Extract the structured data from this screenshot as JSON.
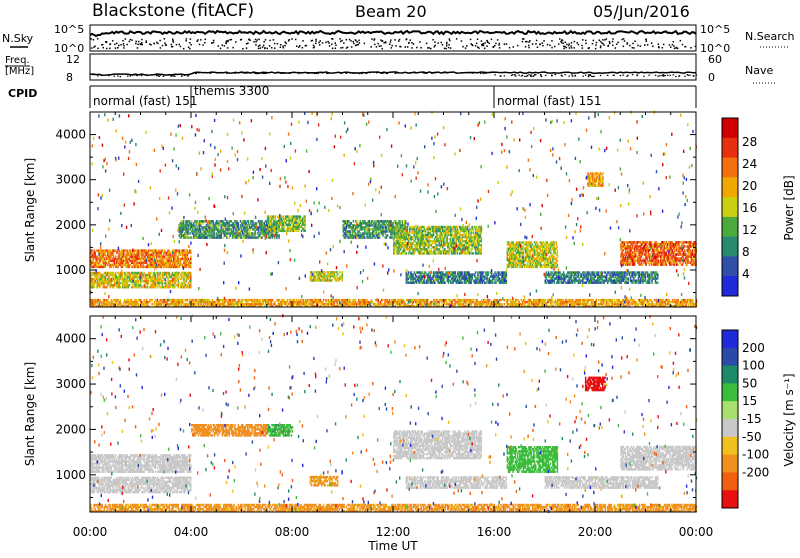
{
  "header": {
    "station": "Blackstone (fitACF)",
    "beam": "Beam 20",
    "date": "05/Jun/2016"
  },
  "top_panels": {
    "nsky_label": "N.Sky",
    "nsearch_label": "N.Search",
    "noise_ticks_left": [
      "10^5",
      "10^0"
    ],
    "noise_ticks_right": [
      "10^5",
      "10^0"
    ],
    "freq_label": "Freq.",
    "freq_unit": "[MHz]",
    "freq_ticks": [
      "12",
      "8"
    ],
    "nave_label": "Nave",
    "nave_ticks": [
      "60",
      "0"
    ],
    "cpid_label": "CPID"
  },
  "cpid_segments": [
    {
      "label": "normal (fast) 151",
      "start_hour": 0.0
    },
    {
      "label": "themis 3300",
      "start_hour": 4.0
    },
    {
      "label": "normal (fast) 151",
      "start_hour": 16.0
    }
  ],
  "axes": {
    "x_ticks": [
      "00:00",
      "04:00",
      "08:00",
      "12:00",
      "16:00",
      "20:00",
      "00:00"
    ],
    "x_label": "Time UT",
    "y_label": "Slant Range [km]",
    "y_ticks": [
      "1000",
      "2000",
      "3000",
      "4000"
    ]
  },
  "power_scale": {
    "label": "Power [dB]",
    "ticks": [
      "4",
      "8",
      "12",
      "16",
      "20",
      "24",
      "28"
    ],
    "colors": [
      "#1f2bd8",
      "#2f4fa8",
      "#2a8a70",
      "#4caa3c",
      "#c8d010",
      "#f0a800",
      "#f07010",
      "#e83010",
      "#d00000"
    ]
  },
  "velocity_scale": {
    "label": "Velocity [m s⁻¹]",
    "ticks": [
      "200",
      "100",
      "50",
      "15",
      "-15",
      "-50",
      "-100",
      "-200"
    ],
    "colors": [
      "#1f2bd8",
      "#2a4aa8",
      "#1e8a6a",
      "#3cbc3c",
      "#a8e070",
      "#c8c8c8",
      "#f0c020",
      "#f09020",
      "#f06010",
      "#e81010"
    ]
  },
  "chart_data": {
    "type": "heatmap",
    "x_range_hours": [
      0,
      24
    ],
    "y_range_km": [
      180,
      4500
    ],
    "panels": [
      {
        "name": "power",
        "regions": [
          {
            "t": [
              0.0,
              4.0
            ],
            "r": [
              1050,
              1450
            ],
            "v": 22
          },
          {
            "t": [
              0.0,
              4.0
            ],
            "r": [
              600,
              950
            ],
            "v": 17
          },
          {
            "t": [
              3.5,
              7.5
            ],
            "r": [
              1700,
              2100
            ],
            "v": 10
          },
          {
            "t": [
              7.0,
              8.5
            ],
            "r": [
              1850,
              2200
            ],
            "v": 14
          },
          {
            "t": [
              8.7,
              10.0
            ],
            "r": [
              750,
              950
            ],
            "v": 16
          },
          {
            "t": [
              10.0,
              12.5
            ],
            "r": [
              1700,
              2100
            ],
            "v": 10
          },
          {
            "t": [
              12.0,
              15.5
            ],
            "r": [
              1350,
              1950
            ],
            "v": 14
          },
          {
            "t": [
              12.5,
              16.5
            ],
            "r": [
              700,
              950
            ],
            "v": 8
          },
          {
            "t": [
              16.5,
              18.5
            ],
            "r": [
              1050,
              1600
            ],
            "v": 16
          },
          {
            "t": [
              18.0,
              22.5
            ],
            "r": [
              700,
              950
            ],
            "v": 8
          },
          {
            "t": [
              19.7,
              20.3
            ],
            "r": [
              2850,
              3150
            ],
            "v": 20
          },
          {
            "t": [
              21.0,
              24.0
            ],
            "r": [
              1100,
              1600
            ],
            "v": 24
          },
          {
            "t": [
              0.0,
              24.0
            ],
            "r": [
              180,
              350
            ],
            "v": 20
          }
        ]
      },
      {
        "name": "velocity",
        "regions": [
          {
            "t": [
              0.0,
              4.0
            ],
            "r": [
              1050,
              1450
            ],
            "v": 0
          },
          {
            "t": [
              0.0,
              4.0
            ],
            "r": [
              600,
              950
            ],
            "v": 0
          },
          {
            "t": [
              4.0,
              7.0
            ],
            "r": [
              1850,
              2100
            ],
            "v": -80
          },
          {
            "t": [
              7.0,
              8.0
            ],
            "r": [
              1850,
              2100
            ],
            "v": 40
          },
          {
            "t": [
              8.7,
              9.8
            ],
            "r": [
              750,
              950
            ],
            "v": -60
          },
          {
            "t": [
              12.0,
              15.5
            ],
            "r": [
              1350,
              1950
            ],
            "v": 0
          },
          {
            "t": [
              12.5,
              16.5
            ],
            "r": [
              700,
              950
            ],
            "v": 0
          },
          {
            "t": [
              16.5,
              18.5
            ],
            "r": [
              1050,
              1600
            ],
            "v": 30
          },
          {
            "t": [
              18.0,
              22.5
            ],
            "r": [
              700,
              950
            ],
            "v": 0
          },
          {
            "t": [
              19.6,
              20.4
            ],
            "r": [
              2850,
              3150
            ],
            "v": -250
          },
          {
            "t": [
              21.0,
              24.0
            ],
            "r": [
              1100,
              1600
            ],
            "v": 0
          },
          {
            "t": [
              0.0,
              24.0
            ],
            "r": [
              180,
              350
            ],
            "v": -60
          }
        ]
      }
    ]
  }
}
